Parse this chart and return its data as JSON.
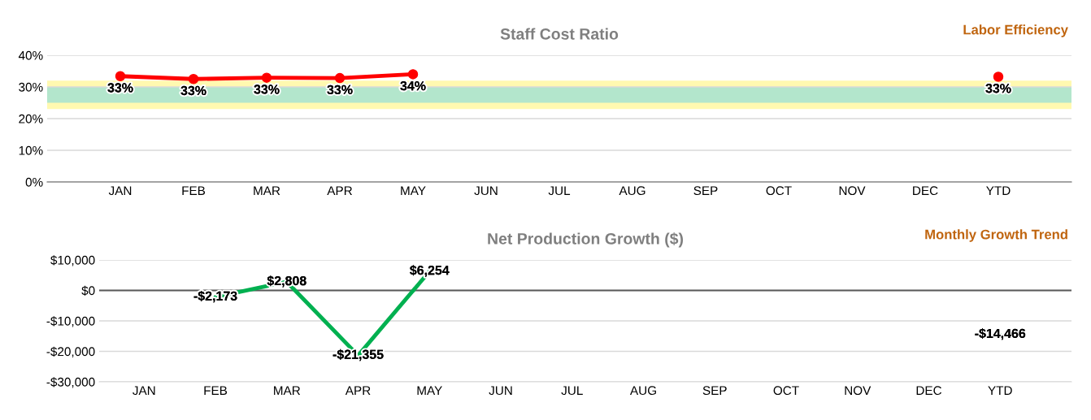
{
  "chart_data": [
    {
      "type": "line",
      "title": "Staff Cost Ratio",
      "subtitle": "Labor Efficiency",
      "categories": [
        "JAN",
        "FEB",
        "MAR",
        "APR",
        "MAY",
        "JUN",
        "JUL",
        "AUG",
        "SEP",
        "OCT",
        "NOV",
        "DEC",
        "YTD"
      ],
      "series": [
        {
          "color": "#ff0000",
          "values": [
            33.4,
            32.5,
            32.9,
            32.8,
            34.0,
            null,
            null,
            null,
            null,
            null,
            null,
            null,
            33.2
          ],
          "value_labels": [
            "33%",
            "33%",
            "33%",
            "33%",
            "34%",
            null,
            null,
            null,
            null,
            null,
            null,
            null,
            "33%"
          ]
        }
      ],
      "bands": [
        {
          "axis": "y",
          "from": 23,
          "to": 32,
          "color": "#fff9b0"
        },
        {
          "axis": "y",
          "from": 25,
          "to": 30,
          "color": "#b3e6cc"
        }
      ],
      "ylim": [
        0,
        40
      ],
      "yticks": [
        {
          "value": 0,
          "label": "0%"
        },
        {
          "value": 10,
          "label": "10%"
        },
        {
          "value": 20,
          "label": "20%"
        },
        {
          "value": 30,
          "label": "30%"
        },
        {
          "value": 40,
          "label": "40%"
        }
      ],
      "grid": "y",
      "marker": "circle",
      "line_style": "solid",
      "legend": false
    },
    {
      "type": "line",
      "title": "Net Production Growth ($)",
      "subtitle": "Monthly Growth Trend",
      "categories": [
        "JAN",
        "FEB",
        "MAR",
        "APR",
        "MAY",
        "JUN",
        "JUL",
        "AUG",
        "SEP",
        "OCT",
        "NOV",
        "DEC",
        "YTD"
      ],
      "series": [
        {
          "color": "#00b050",
          "values": [
            null,
            -2173,
            2808,
            -21355,
            6254,
            null,
            null,
            null,
            null,
            null,
            null,
            null,
            -14466
          ],
          "value_labels": [
            null,
            "-$2,173",
            "$2,808",
            "-$21,355",
            "$6,254",
            null,
            null,
            null,
            null,
            null,
            null,
            null,
            "-$14,466"
          ]
        }
      ],
      "ref_lines": [
        {
          "axis": "y",
          "value": 0,
          "color": "#595959"
        }
      ],
      "ylim": [
        -30000,
        10000
      ],
      "yticks": [
        {
          "value": -30000,
          "label": "-$30,000"
        },
        {
          "value": -20000,
          "label": "-$20,000"
        },
        {
          "value": -10000,
          "label": "-$10,000"
        },
        {
          "value": 0,
          "label": "$0"
        },
        {
          "value": 10000,
          "label": "$10,000"
        }
      ],
      "grid": "y",
      "marker": "none",
      "line_style": "solid",
      "legend": false
    }
  ]
}
